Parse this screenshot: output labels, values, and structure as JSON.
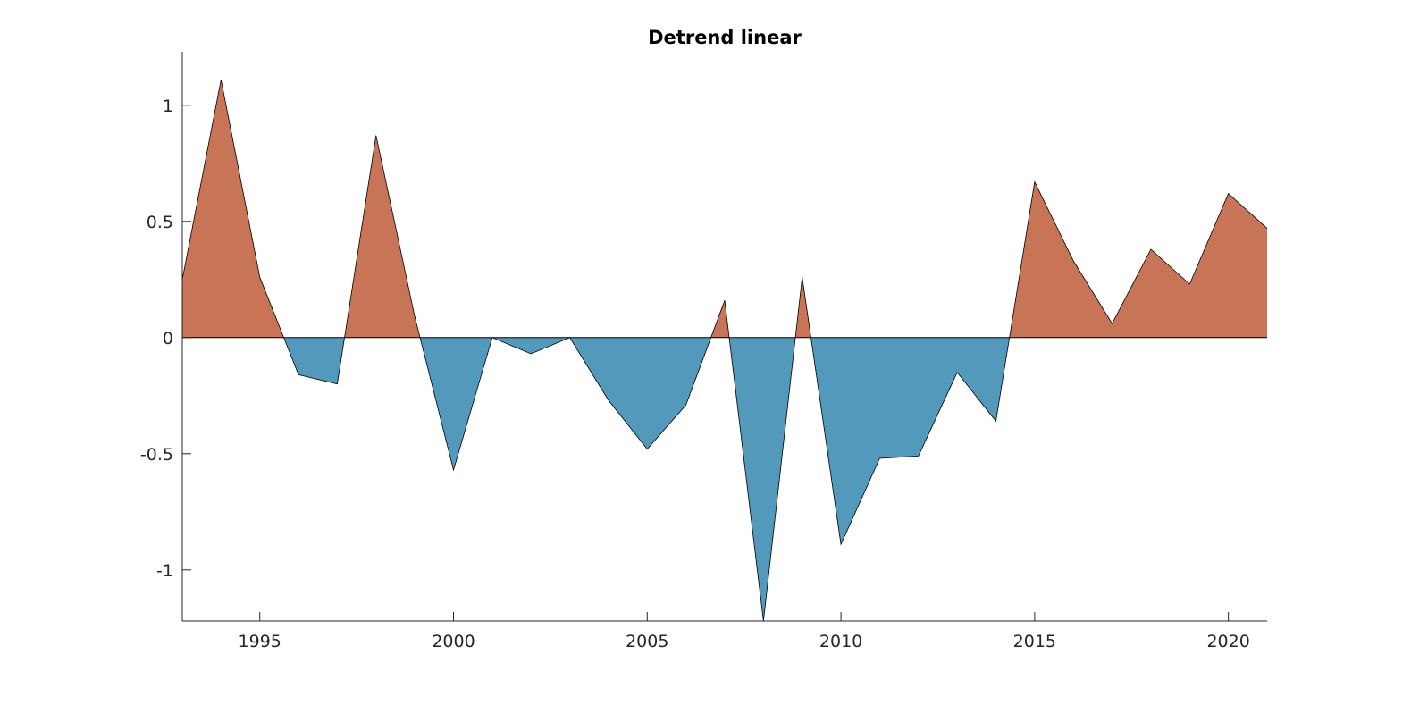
{
  "chart_data": {
    "type": "area",
    "title": "Detrend linear",
    "xlabel": "",
    "ylabel": "",
    "xlim": [
      1993,
      2021
    ],
    "ylim": [
      -1.22,
      1.23
    ],
    "x_ticks": [
      1995,
      2000,
      2005,
      2010,
      2015,
      2020
    ],
    "y_ticks": [
      1,
      0.5,
      0,
      -0.5,
      -1
    ],
    "y_tick_labels": [
      "1",
      "0.5",
      "0",
      "-0.5",
      "-1"
    ],
    "grid": false,
    "baseline": 0,
    "colors": {
      "positive": "#c87456",
      "negative": "#5299bb",
      "outline": "#000000"
    },
    "x": [
      1993,
      1994,
      1995,
      1996,
      1997,
      1998,
      1999,
      2000,
      2001,
      2002,
      2003,
      2004,
      2005,
      2006,
      2007,
      2008,
      2009,
      2010,
      2011,
      2012,
      2013,
      2014,
      2015,
      2016,
      2017,
      2018,
      2019,
      2020,
      2021
    ],
    "values": [
      0.25,
      1.11,
      0.26,
      -0.16,
      -0.2,
      0.87,
      0.09,
      -0.57,
      0.0,
      -0.07,
      0.0,
      -0.27,
      -0.48,
      -0.29,
      0.16,
      -1.22,
      0.26,
      -0.89,
      -0.52,
      -0.51,
      -0.15,
      -0.36,
      0.67,
      0.33,
      0.06,
      0.38,
      0.23,
      0.62,
      0.47
    ]
  }
}
